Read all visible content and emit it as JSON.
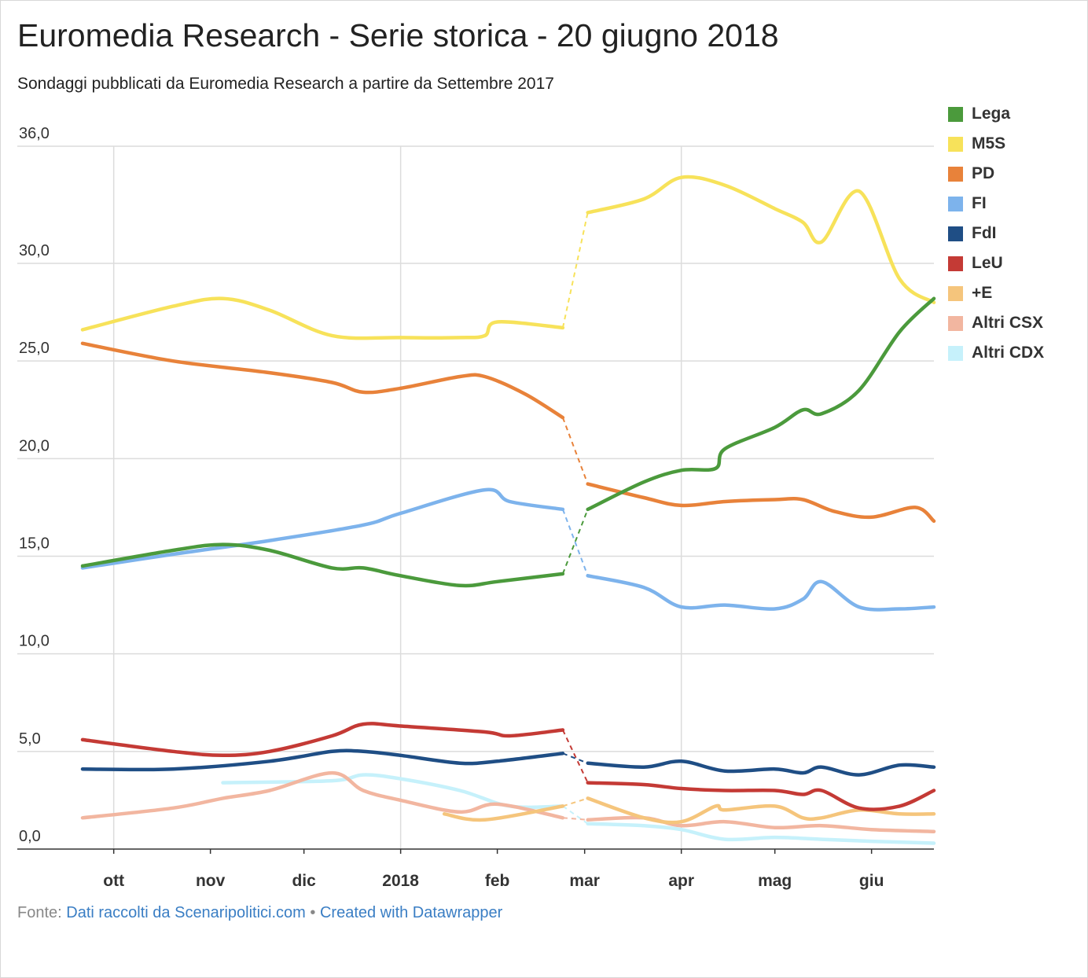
{
  "title": "Euromedia Research - Serie storica - 20 giugno 2018",
  "subtitle": "Sondaggi pubblicati da Euromedia Research a partire da Settembre 2017",
  "footer": {
    "source_label": "Fonte:",
    "source_link": "Dati raccolti da Scenaripolitici.com",
    "separator": "•",
    "credit_link": "Created with Datawrapper"
  },
  "chart_data": {
    "type": "line",
    "ylim": [
      0,
      36
    ],
    "yticks": [
      "0,0",
      "5,0",
      "10,0",
      "15,0",
      "20,0",
      "25,0",
      "30,0",
      "36,0"
    ],
    "ytick_values": [
      0,
      5,
      10,
      15,
      20,
      25,
      30,
      36
    ],
    "xlim": [
      "2017-09-21",
      "2018-06-21"
    ],
    "xticks": [
      {
        "label": "ott",
        "date": "2017-10-01"
      },
      {
        "label": "nov",
        "date": "2017-11-01"
      },
      {
        "label": "dic",
        "date": "2017-12-01"
      },
      {
        "label": "2018",
        "date": "2018-01-01"
      },
      {
        "label": "feb",
        "date": "2018-02-01"
      },
      {
        "label": "mar",
        "date": "2018-03-01"
      },
      {
        "label": "apr",
        "date": "2018-04-01"
      },
      {
        "label": "mag",
        "date": "2018-05-01"
      },
      {
        "label": "giu",
        "date": "2018-06-01"
      }
    ],
    "gridlines": [
      "2017-10-01",
      "2018-01-01",
      "2018-04-01"
    ],
    "election_gap": {
      "from": "2018-02-22",
      "to": "2018-03-02"
    },
    "legend_position": "right",
    "series": [
      {
        "name": "Lega",
        "color": "#4b9a3c",
        "points": [
          [
            "2017-09-21",
            14.5
          ],
          [
            "2017-10-20",
            15.3
          ],
          [
            "2017-11-05",
            15.6
          ],
          [
            "2017-11-20",
            15.3
          ],
          [
            "2017-12-10",
            14.4
          ],
          [
            "2017-12-20",
            14.4
          ],
          [
            "2018-01-01",
            14.0
          ],
          [
            "2018-01-20",
            13.5
          ],
          [
            "2018-02-01",
            13.7
          ],
          [
            "2018-02-22",
            14.1
          ],
          [
            "2018-03-02",
            17.4
          ],
          [
            "2018-03-20",
            18.8
          ],
          [
            "2018-04-01",
            19.4
          ],
          [
            "2018-04-12",
            19.5
          ],
          [
            "2018-04-15",
            20.5
          ],
          [
            "2018-05-01",
            21.6
          ],
          [
            "2018-05-10",
            22.5
          ],
          [
            "2018-05-16",
            22.3
          ],
          [
            "2018-05-28",
            23.5
          ],
          [
            "2018-06-10",
            26.5
          ],
          [
            "2018-06-21",
            28.2
          ]
        ]
      },
      {
        "name": "M5S",
        "color": "#f7e25a",
        "points": [
          [
            "2017-09-21",
            26.6
          ],
          [
            "2017-10-20",
            27.8
          ],
          [
            "2017-11-05",
            28.2
          ],
          [
            "2017-11-20",
            27.6
          ],
          [
            "2017-12-10",
            26.3
          ],
          [
            "2018-01-01",
            26.2
          ],
          [
            "2018-01-20",
            26.2
          ],
          [
            "2018-01-28",
            26.3
          ],
          [
            "2018-02-01",
            27.0
          ],
          [
            "2018-02-22",
            26.7
          ],
          [
            "2018-03-02",
            32.6
          ],
          [
            "2018-03-20",
            33.3
          ],
          [
            "2018-04-01",
            34.4
          ],
          [
            "2018-04-15",
            34.0
          ],
          [
            "2018-05-01",
            32.8
          ],
          [
            "2018-05-10",
            32.1
          ],
          [
            "2018-05-16",
            31.1
          ],
          [
            "2018-05-28",
            33.7
          ],
          [
            "2018-06-10",
            29.2
          ],
          [
            "2018-06-21",
            28.0
          ]
        ]
      },
      {
        "name": "PD",
        "color": "#e8823a",
        "points": [
          [
            "2017-09-21",
            25.9
          ],
          [
            "2017-10-20",
            25.0
          ],
          [
            "2017-11-20",
            24.4
          ],
          [
            "2017-12-10",
            23.9
          ],
          [
            "2017-12-20",
            23.4
          ],
          [
            "2018-01-01",
            23.6
          ],
          [
            "2018-01-20",
            24.2
          ],
          [
            "2018-01-28",
            24.2
          ],
          [
            "2018-02-10",
            23.3
          ],
          [
            "2018-02-22",
            22.1
          ],
          [
            "2018-03-02",
            18.7
          ],
          [
            "2018-03-20",
            18.0
          ],
          [
            "2018-04-01",
            17.6
          ],
          [
            "2018-04-15",
            17.8
          ],
          [
            "2018-05-01",
            17.9
          ],
          [
            "2018-05-10",
            17.9
          ],
          [
            "2018-05-20",
            17.3
          ],
          [
            "2018-06-01",
            17.0
          ],
          [
            "2018-06-15",
            17.5
          ],
          [
            "2018-06-21",
            16.8
          ]
        ]
      },
      {
        "name": "FI",
        "color": "#7db3ec",
        "points": [
          [
            "2017-09-21",
            14.4
          ],
          [
            "2017-10-20",
            15.1
          ],
          [
            "2017-11-20",
            15.8
          ],
          [
            "2017-12-20",
            16.6
          ],
          [
            "2018-01-01",
            17.2
          ],
          [
            "2018-01-28",
            18.4
          ],
          [
            "2018-02-05",
            17.8
          ],
          [
            "2018-02-22",
            17.4
          ],
          [
            "2018-03-02",
            14.0
          ],
          [
            "2018-03-20",
            13.4
          ],
          [
            "2018-04-01",
            12.4
          ],
          [
            "2018-04-15",
            12.5
          ],
          [
            "2018-05-01",
            12.3
          ],
          [
            "2018-05-10",
            12.8
          ],
          [
            "2018-05-16",
            13.7
          ],
          [
            "2018-05-28",
            12.4
          ],
          [
            "2018-06-10",
            12.3
          ],
          [
            "2018-06-21",
            12.4
          ]
        ]
      },
      {
        "name": "FdI",
        "color": "#1f4e85",
        "points": [
          [
            "2017-09-21",
            4.1
          ],
          [
            "2017-10-20",
            4.1
          ],
          [
            "2017-11-20",
            4.5
          ],
          [
            "2017-12-10",
            5.0
          ],
          [
            "2017-12-20",
            5.0
          ],
          [
            "2018-01-01",
            4.8
          ],
          [
            "2018-01-20",
            4.4
          ],
          [
            "2018-02-01",
            4.5
          ],
          [
            "2018-02-22",
            4.9
          ],
          [
            "2018-03-02",
            4.4
          ],
          [
            "2018-03-20",
            4.2
          ],
          [
            "2018-04-01",
            4.5
          ],
          [
            "2018-04-15",
            4.0
          ],
          [
            "2018-05-01",
            4.1
          ],
          [
            "2018-05-10",
            3.9
          ],
          [
            "2018-05-16",
            4.2
          ],
          [
            "2018-05-28",
            3.8
          ],
          [
            "2018-06-10",
            4.3
          ],
          [
            "2018-06-21",
            4.2
          ]
        ]
      },
      {
        "name": "LeU",
        "color": "#c43a35",
        "points": [
          [
            "2017-09-21",
            5.6
          ],
          [
            "2017-10-20",
            5.0
          ],
          [
            "2017-11-05",
            4.8
          ],
          [
            "2017-11-20",
            5.0
          ],
          [
            "2017-12-10",
            5.8
          ],
          [
            "2017-12-20",
            6.4
          ],
          [
            "2018-01-01",
            6.3
          ],
          [
            "2018-01-28",
            6.0
          ],
          [
            "2018-02-05",
            5.8
          ],
          [
            "2018-02-22",
            6.1
          ],
          [
            "2018-03-02",
            3.4
          ],
          [
            "2018-03-20",
            3.3
          ],
          [
            "2018-04-01",
            3.1
          ],
          [
            "2018-04-15",
            3.0
          ],
          [
            "2018-05-01",
            3.0
          ],
          [
            "2018-05-10",
            2.8
          ],
          [
            "2018-05-16",
            3.0
          ],
          [
            "2018-05-28",
            2.1
          ],
          [
            "2018-06-10",
            2.2
          ],
          [
            "2018-06-21",
            3.0
          ]
        ]
      },
      {
        "name": "+E",
        "color": "#f5c57c",
        "points": [
          [
            "2018-01-15",
            1.8
          ],
          [
            "2018-01-28",
            1.5
          ],
          [
            "2018-02-22",
            2.2
          ],
          [
            "2018-03-02",
            2.6
          ],
          [
            "2018-03-20",
            1.6
          ],
          [
            "2018-04-01",
            1.4
          ],
          [
            "2018-04-12",
            2.2
          ],
          [
            "2018-04-15",
            2.0
          ],
          [
            "2018-05-01",
            2.2
          ],
          [
            "2018-05-10",
            1.6
          ],
          [
            "2018-05-16",
            1.6
          ],
          [
            "2018-05-28",
            2.0
          ],
          [
            "2018-06-10",
            1.8
          ],
          [
            "2018-06-21",
            1.8
          ]
        ]
      },
      {
        "name": "Altri CSX",
        "color": "#f2b6a0",
        "points": [
          [
            "2017-09-21",
            1.6
          ],
          [
            "2017-10-20",
            2.1
          ],
          [
            "2017-11-05",
            2.6
          ],
          [
            "2017-11-20",
            3.0
          ],
          [
            "2017-12-10",
            3.9
          ],
          [
            "2017-12-20",
            3.0
          ],
          [
            "2018-01-01",
            2.5
          ],
          [
            "2018-01-20",
            1.9
          ],
          [
            "2018-02-01",
            2.3
          ],
          [
            "2018-02-22",
            1.6
          ],
          [
            "2018-03-02",
            1.5
          ],
          [
            "2018-03-20",
            1.6
          ],
          [
            "2018-04-01",
            1.2
          ],
          [
            "2018-04-15",
            1.4
          ],
          [
            "2018-05-01",
            1.1
          ],
          [
            "2018-05-16",
            1.2
          ],
          [
            "2018-06-01",
            1.0
          ],
          [
            "2018-06-21",
            0.9
          ]
        ]
      },
      {
        "name": "Altri CDX",
        "color": "#c6f1fb",
        "points": [
          [
            "2017-11-05",
            3.4
          ],
          [
            "2017-12-10",
            3.5
          ],
          [
            "2017-12-20",
            3.8
          ],
          [
            "2018-01-01",
            3.6
          ],
          [
            "2018-01-20",
            3.0
          ],
          [
            "2018-02-05",
            2.2
          ],
          [
            "2018-02-22",
            2.2
          ],
          [
            "2018-03-02",
            1.3
          ],
          [
            "2018-03-20",
            1.2
          ],
          [
            "2018-04-01",
            1.0
          ],
          [
            "2018-04-15",
            0.5
          ],
          [
            "2018-05-01",
            0.6
          ],
          [
            "2018-05-16",
            0.5
          ],
          [
            "2018-06-01",
            0.4
          ],
          [
            "2018-06-21",
            0.3
          ]
        ]
      }
    ]
  }
}
